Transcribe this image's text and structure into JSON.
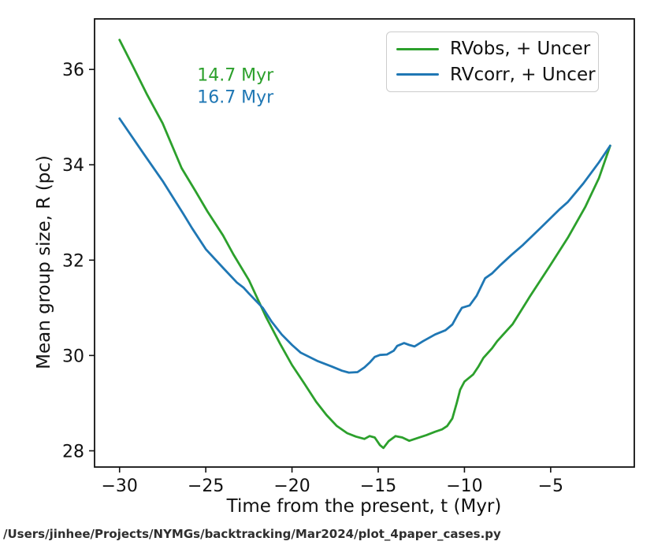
{
  "footer": {
    "path": "/Users/jinhee/Projects/NYMGs/backtracking/Mar2024/plot_4paper_cases.py"
  },
  "chart_data": {
    "type": "line",
    "title": "",
    "xlabel": "Time from the present, t (Myr)",
    "ylabel": "Mean group size, R (pc)",
    "xlim": [
      -31.45,
      -0.15
    ],
    "ylim": [
      27.66,
      37.06
    ],
    "xticks": [
      -30,
      -25,
      -20,
      -15,
      -10,
      -5
    ],
    "yticks": [
      28,
      30,
      32,
      34,
      36
    ],
    "grid": false,
    "legend_position": "upper right",
    "frame_color": "#111111",
    "annotations": [
      {
        "text": "14.7 Myr",
        "color": "#2ca02c",
        "t": -25.5,
        "r": 35.87
      },
      {
        "text": "16.7 Myr",
        "color": "#1f77b4",
        "t": -25.5,
        "r": 35.41
      }
    ],
    "series": [
      {
        "name": "RVobs, + Uncer",
        "color": "#2ca02c",
        "points": [
          [
            -30,
            36.62
          ],
          [
            -29.2,
            36.05
          ],
          [
            -28.4,
            35.47
          ],
          [
            -27.5,
            34.87
          ],
          [
            -26.4,
            33.93
          ],
          [
            -25.6,
            33.45
          ],
          [
            -24.9,
            33.02
          ],
          [
            -24,
            32.52
          ],
          [
            -23.4,
            32.12
          ],
          [
            -22.5,
            31.58
          ],
          [
            -21.5,
            30.8
          ],
          [
            -20.7,
            30.25
          ],
          [
            -20,
            29.8
          ],
          [
            -19.3,
            29.42
          ],
          [
            -18.6,
            29.03
          ],
          [
            -18,
            28.75
          ],
          [
            -17.4,
            28.52
          ],
          [
            -16.8,
            28.37
          ],
          [
            -16.3,
            28.3
          ],
          [
            -15.8,
            28.25
          ],
          [
            -15.5,
            28.31
          ],
          [
            -15.2,
            28.28
          ],
          [
            -14.9,
            28.12
          ],
          [
            -14.7,
            28.06
          ],
          [
            -14.4,
            28.2
          ],
          [
            -14,
            28.31
          ],
          [
            -13.6,
            28.28
          ],
          [
            -13.2,
            28.21
          ],
          [
            -12.7,
            28.27
          ],
          [
            -12.2,
            28.33
          ],
          [
            -11.7,
            28.4
          ],
          [
            -11.3,
            28.45
          ],
          [
            -11,
            28.52
          ],
          [
            -10.7,
            28.68
          ],
          [
            -10.45,
            29
          ],
          [
            -10.25,
            29.28
          ],
          [
            -10,
            29.45
          ],
          [
            -9.5,
            29.6
          ],
          [
            -9.2,
            29.76
          ],
          [
            -8.9,
            29.95
          ],
          [
            -8.4,
            30.15
          ],
          [
            -8.1,
            30.3
          ],
          [
            -7.2,
            30.66
          ],
          [
            -6.2,
            31.24
          ],
          [
            -5.1,
            31.85
          ],
          [
            -4,
            32.47
          ],
          [
            -3,
            33.11
          ],
          [
            -2.2,
            33.72
          ],
          [
            -1.55,
            34.4
          ]
        ]
      },
      {
        "name": "RVcorr, + Uncer",
        "color": "#1f77b4",
        "points": [
          [
            -30,
            34.97
          ],
          [
            -28.6,
            34.23
          ],
          [
            -27.5,
            33.66
          ],
          [
            -26.3,
            32.97
          ],
          [
            -25.8,
            32.67
          ],
          [
            -25,
            32.23
          ],
          [
            -24,
            31.84
          ],
          [
            -23.2,
            31.53
          ],
          [
            -22.8,
            31.42
          ],
          [
            -22.5,
            31.3
          ],
          [
            -21.7,
            31
          ],
          [
            -21.2,
            30.72
          ],
          [
            -20.6,
            30.44
          ],
          [
            -20,
            30.22
          ],
          [
            -19.5,
            30.06
          ],
          [
            -18.5,
            29.88
          ],
          [
            -17.7,
            29.77
          ],
          [
            -17.1,
            29.68
          ],
          [
            -16.7,
            29.64
          ],
          [
            -16.2,
            29.65
          ],
          [
            -15.8,
            29.75
          ],
          [
            -15.5,
            29.85
          ],
          [
            -15.2,
            29.97
          ],
          [
            -14.9,
            30.01
          ],
          [
            -14.5,
            30.02
          ],
          [
            -14.1,
            30.1
          ],
          [
            -13.9,
            30.2
          ],
          [
            -13.5,
            30.26
          ],
          [
            -13.2,
            30.22
          ],
          [
            -12.9,
            30.19
          ],
          [
            -12.4,
            30.3
          ],
          [
            -11.7,
            30.44
          ],
          [
            -11.1,
            30.53
          ],
          [
            -10.7,
            30.65
          ],
          [
            -10.4,
            30.85
          ],
          [
            -10.15,
            31
          ],
          [
            -9.7,
            31.05
          ],
          [
            -9.3,
            31.25
          ],
          [
            -8.8,
            31.62
          ],
          [
            -8.4,
            31.72
          ],
          [
            -7.9,
            31.9
          ],
          [
            -7.3,
            32.1
          ],
          [
            -6.6,
            32.32
          ],
          [
            -5.6,
            32.67
          ],
          [
            -4.5,
            33.06
          ],
          [
            -4,
            33.22
          ],
          [
            -3.1,
            33.61
          ],
          [
            -2.2,
            34.05
          ],
          [
            -1.55,
            34.4
          ]
        ]
      }
    ]
  }
}
